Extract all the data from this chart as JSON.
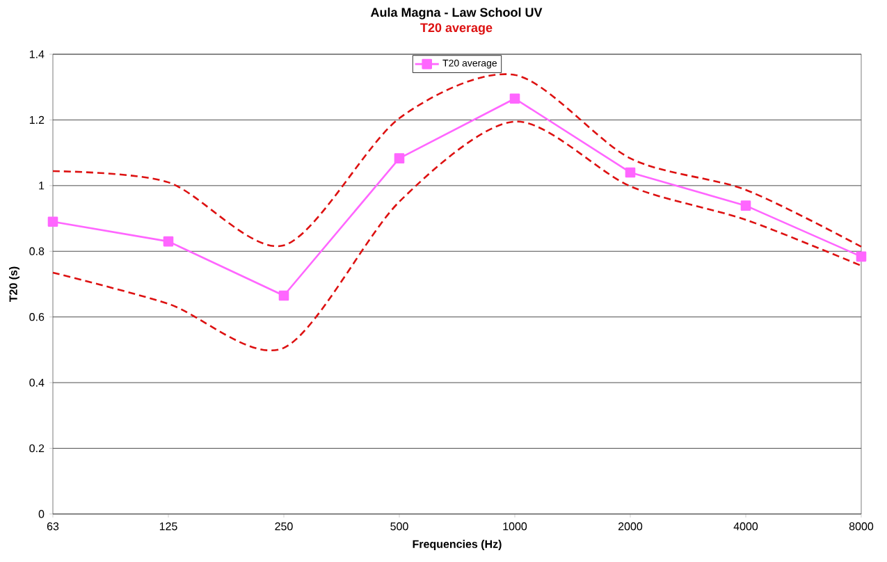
{
  "chart_data": {
    "type": "line",
    "title": "Aula Magna - Law School UV",
    "subtitle": "T20 average",
    "xlabel": "Frequencies (Hz)",
    "ylabel": "T20 (s)",
    "categories": [
      "63",
      "125",
      "250",
      "500",
      "1000",
      "2000",
      "4000",
      "8000"
    ],
    "series": [
      {
        "name": "T20 average",
        "color": "#ff66ff",
        "marker": "square",
        "line_style": "solid",
        "values": [
          0.89,
          0.83,
          0.665,
          1.083,
          1.265,
          1.04,
          0.939,
          0.784
        ]
      },
      {
        "color": "#dd1111",
        "marker": "none",
        "line_style": "dashed",
        "values": [
          1.044,
          1.01,
          0.818,
          1.205,
          1.337,
          1.083,
          0.987,
          0.814
        ]
      },
      {
        "color": "#dd1111",
        "marker": "none",
        "line_style": "dashed",
        "values": [
          0.735,
          0.64,
          0.506,
          0.951,
          1.195,
          0.998,
          0.896,
          0.756
        ]
      }
    ],
    "ylim": [
      0,
      1.4
    ],
    "yticks": [
      0,
      0.2,
      0.4,
      0.6,
      0.8,
      1,
      1.2,
      1.4
    ],
    "grid": "y",
    "legend": "top"
  }
}
